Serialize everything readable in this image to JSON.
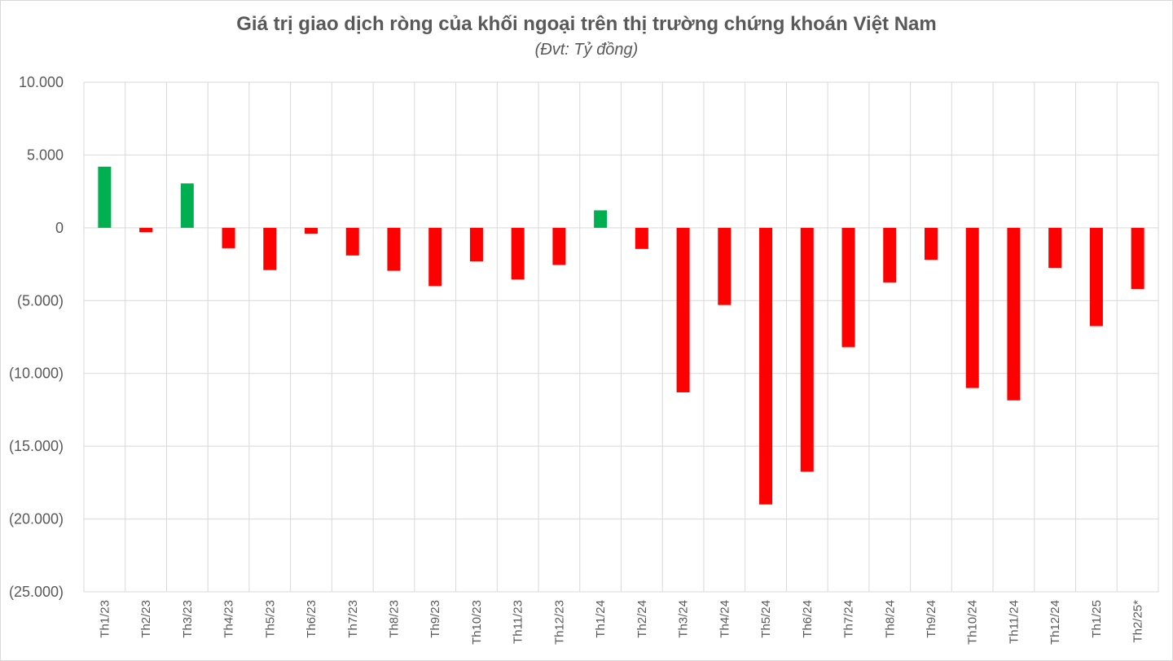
{
  "chart_data": {
    "type": "bar",
    "title": "Giá trị giao dịch ròng của khối ngoại trên thị trường chứng khoán Việt Nam",
    "subtitle": "(Đvt: Tỷ đồng)",
    "xlabel": "",
    "ylabel": "",
    "ylim": [
      -25000,
      10000
    ],
    "y_ticks": [
      10000,
      5000,
      0,
      -5000,
      -10000,
      -15000,
      -20000,
      -25000
    ],
    "y_tick_labels": [
      "10.000",
      "5.000",
      "0",
      "(5.000)",
      "(10.000)",
      "(15.000)",
      "(20.000)",
      "(25.000)"
    ],
    "grid": true,
    "positive_color": "#00b050",
    "negative_color": "#ff0000",
    "categories": [
      "Th1/23",
      "Th2/23",
      "Th3/23",
      "Th4/23",
      "Th5/23",
      "Th6/23",
      "Th7/23",
      "Th8/23",
      "Th9/23",
      "Th10/23",
      "Th11/23",
      "Th12/23",
      "Th1/24",
      "Th2/24",
      "Th3/24",
      "Th4/24",
      "Th5/24",
      "Th6/24",
      "Th7/24",
      "Th8/24",
      "Th9/24",
      "Th10/24",
      "Th11/24",
      "Th12/24",
      "Th1/25",
      "Th2/25*"
    ],
    "values": [
      4200,
      -300,
      3050,
      -1400,
      -2900,
      -400,
      -1900,
      -2950,
      -4000,
      -2300,
      -3550,
      -2550,
      1200,
      -1450,
      -11300,
      -5300,
      -19000,
      -16750,
      -8200,
      -3750,
      -2200,
      -11000,
      -11850,
      -2750,
      -6750,
      -4200
    ]
  }
}
